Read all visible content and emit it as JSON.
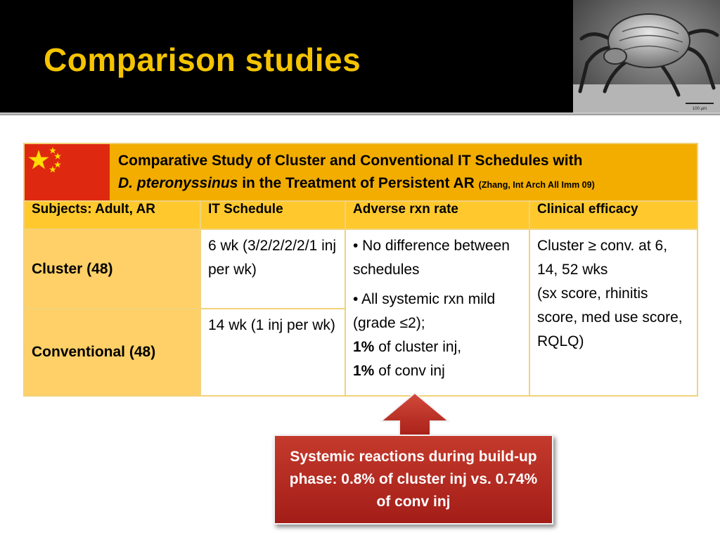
{
  "slide": {
    "title": "Comparison studies"
  },
  "header_image": {
    "icon": "dust-mite-photo-icon",
    "scale_label": "100 µm"
  },
  "study": {
    "title_line1": "Comparative Study of Cluster and Conventional IT Schedules with",
    "title_species": "D. pteronyssinus",
    "title_line2_rest": " in the Treatment of Persistent AR ",
    "citation": "(Zhang, Int Arch All Imm 09)",
    "flag_icon": "china-flag-icon"
  },
  "table": {
    "headers": [
      "Subjects: Adult, AR",
      "IT Schedule",
      "Adverse rxn rate",
      "Clinical efficacy"
    ],
    "cluster": {
      "label": "Cluster (48)",
      "schedule": "6 wk (3/2/2/2/2/1 inj per wk)"
    },
    "conventional": {
      "label": "Conventional (48)",
      "schedule": "14 wk (1 inj per wk)"
    },
    "adverse": {
      "bullet1": "• No difference between schedules",
      "bullet2": "• All systemic rxn mild (grade ≤2);",
      "cluster_pct": "1%",
      "cluster_text": " of cluster inj,",
      "conv_pct": "1%",
      "conv_text": " of conv inj"
    },
    "efficacy": {
      "line1": "Cluster ≥ conv. at 6, 14, 52 wks",
      "line2": "(sx score, rhinitis score, med use score, RQLQ)"
    }
  },
  "callout": {
    "text": "Systemic reactions during build-up phase: 0.8% of cluster inj vs. 0.74% of conv inj"
  },
  "colors": {
    "title_gold": "#f5c400",
    "header_bg": "#000000",
    "table_title_bg": "#f2ad00",
    "table_header_bg": "#ffc92e",
    "row_head_bg": "#ffd067",
    "flag_red": "#de2910",
    "callout_red": "#b02a22"
  }
}
